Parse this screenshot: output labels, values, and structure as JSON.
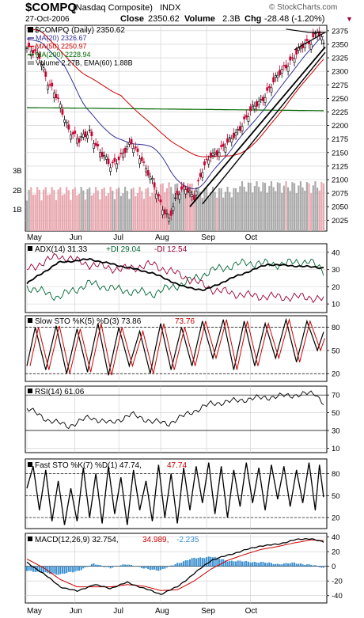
{
  "header": {
    "symbol": "$COMPQ",
    "symbol_desc": "(Nasdaq Composite)",
    "exchange": "INDX",
    "watermark": "© StockCharts.com",
    "date": "27-Oct-2006",
    "close_label": "Close",
    "close": "2350.62",
    "volume_label": "Volume",
    "volume": "2.3B",
    "chg_label": "Chg",
    "chg": "-28.48 (-1.20%)",
    "chg_arrow": "▼"
  },
  "colors": {
    "up_candle": "#000000",
    "down_candle": "#cc0033",
    "ma20": "#333399",
    "ma50": "#cc0000",
    "ma200": "#006600",
    "volume_bar": "#aaaaaa",
    "volume_down": "#e8a8b0",
    "macd_hist": "#3a8fd0",
    "adx_plus": "#006633",
    "adx_minus": "#990033"
  },
  "chart_data": [
    {
      "type": "line",
      "panel": "price",
      "title": "$COMPQ (Daily) 2350.62",
      "legend": [
        "MA(20) 2326.67",
        "MA(50) 2250.97",
        "MA(200) 2228.94",
        "Volume 2.27B, EMA(60) 1.88B"
      ],
      "months": [
        "May",
        "Jun",
        "Jul",
        "Aug",
        "Sep",
        "Oct"
      ],
      "ylim": [
        2005,
        2385
      ],
      "yticks": [
        2025,
        2050,
        2075,
        2100,
        2125,
        2150,
        2175,
        2200,
        2225,
        2250,
        2275,
        2300,
        2325,
        2350,
        2375
      ],
      "volume_ticks": [
        "1B",
        "2B",
        "3B"
      ],
      "close_series_key": [
        {
          "day": 0,
          "close": 2340
        },
        {
          "day": 6,
          "close": 2330
        },
        {
          "day": 10,
          "close": 2280
        },
        {
          "day": 15,
          "close": 2245
        },
        {
          "day": 20,
          "close": 2195
        },
        {
          "day": 25,
          "close": 2170
        },
        {
          "day": 30,
          "close": 2190
        },
        {
          "day": 35,
          "close": 2150
        },
        {
          "day": 40,
          "close": 2125
        },
        {
          "day": 45,
          "close": 2145
        },
        {
          "day": 50,
          "close": 2165
        },
        {
          "day": 55,
          "close": 2140
        },
        {
          "day": 60,
          "close": 2095
        },
        {
          "day": 64,
          "close": 2055
        },
        {
          "day": 68,
          "close": 2030
        },
        {
          "day": 72,
          "close": 2070
        },
        {
          "day": 76,
          "close": 2085
        },
        {
          "day": 80,
          "close": 2070
        },
        {
          "day": 84,
          "close": 2115
        },
        {
          "day": 88,
          "close": 2145
        },
        {
          "day": 92,
          "close": 2155
        },
        {
          "day": 96,
          "close": 2165
        },
        {
          "day": 100,
          "close": 2185
        },
        {
          "day": 104,
          "close": 2210
        },
        {
          "day": 108,
          "close": 2230
        },
        {
          "day": 112,
          "close": 2245
        },
        {
          "day": 116,
          "close": 2270
        },
        {
          "day": 120,
          "close": 2290
        },
        {
          "day": 124,
          "close": 2310
        },
        {
          "day": 128,
          "close": 2330
        },
        {
          "day": 132,
          "close": 2345
        },
        {
          "day": 136,
          "close": 2355
        },
        {
          "day": 139,
          "close": 2378
        },
        {
          "day": 142,
          "close": 2350
        }
      ]
    },
    {
      "type": "line",
      "panel": "adx",
      "title_parts": {
        "adx": "ADX(14) 31.33",
        "plus": "+DI 29.04",
        "minus": "-DI 12.54"
      },
      "ylim": [
        5,
        45
      ],
      "yticks": [
        10,
        20,
        30,
        40
      ],
      "adx_key": [
        {
          "day": 0,
          "value": 22
        },
        {
          "day": 15,
          "value": 34
        },
        {
          "day": 30,
          "value": 36
        },
        {
          "day": 45,
          "value": 32
        },
        {
          "day": 60,
          "value": 28
        },
        {
          "day": 75,
          "value": 20
        },
        {
          "day": 85,
          "value": 18
        },
        {
          "day": 100,
          "value": 26
        },
        {
          "day": 115,
          "value": 33
        },
        {
          "day": 130,
          "value": 32
        },
        {
          "day": 142,
          "value": 31
        }
      ],
      "plus_di_key": [
        {
          "day": 0,
          "value": 20
        },
        {
          "day": 15,
          "value": 14
        },
        {
          "day": 30,
          "value": 22
        },
        {
          "day": 45,
          "value": 18
        },
        {
          "day": 60,
          "value": 16
        },
        {
          "day": 75,
          "value": 22
        },
        {
          "day": 90,
          "value": 30
        },
        {
          "day": 105,
          "value": 34
        },
        {
          "day": 120,
          "value": 33
        },
        {
          "day": 135,
          "value": 35
        },
        {
          "day": 142,
          "value": 29
        }
      ],
      "minus_di_key": [
        {
          "day": 0,
          "value": 30
        },
        {
          "day": 15,
          "value": 38
        },
        {
          "day": 30,
          "value": 33
        },
        {
          "day": 45,
          "value": 30
        },
        {
          "day": 60,
          "value": 33
        },
        {
          "day": 75,
          "value": 26
        },
        {
          "day": 90,
          "value": 18
        },
        {
          "day": 105,
          "value": 15
        },
        {
          "day": 120,
          "value": 14
        },
        {
          "day": 135,
          "value": 14
        },
        {
          "day": 142,
          "value": 12.5
        }
      ]
    },
    {
      "type": "line",
      "panel": "slow_sto",
      "title_parts": {
        "label": "Slow STO %K(5) %D(3)",
        "k": "73.86",
        "d": "73.76"
      },
      "ylim": [
        10,
        95
      ],
      "yticks": [
        20,
        50,
        80
      ],
      "k_key": [
        {
          "day": 0,
          "value": 30
        },
        {
          "day": 4,
          "value": 80
        },
        {
          "day": 9,
          "value": 25
        },
        {
          "day": 14,
          "value": 82
        },
        {
          "day": 19,
          "value": 20
        },
        {
          "day": 24,
          "value": 78
        },
        {
          "day": 29,
          "value": 22
        },
        {
          "day": 34,
          "value": 85
        },
        {
          "day": 39,
          "value": 18
        },
        {
          "day": 44,
          "value": 80
        },
        {
          "day": 49,
          "value": 30
        },
        {
          "day": 54,
          "value": 75
        },
        {
          "day": 59,
          "value": 20
        },
        {
          "day": 64,
          "value": 85
        },
        {
          "day": 69,
          "value": 25
        },
        {
          "day": 74,
          "value": 80
        },
        {
          "day": 79,
          "value": 30
        },
        {
          "day": 84,
          "value": 88
        },
        {
          "day": 89,
          "value": 40
        },
        {
          "day": 94,
          "value": 90
        },
        {
          "day": 99,
          "value": 25
        },
        {
          "day": 104,
          "value": 88
        },
        {
          "day": 109,
          "value": 30
        },
        {
          "day": 114,
          "value": 85
        },
        {
          "day": 119,
          "value": 40
        },
        {
          "day": 124,
          "value": 90
        },
        {
          "day": 129,
          "value": 35
        },
        {
          "day": 134,
          "value": 88
        },
        {
          "day": 139,
          "value": 50
        },
        {
          "day": 142,
          "value": 74
        }
      ]
    },
    {
      "type": "line",
      "panel": "rsi",
      "title": "RSI(14) 61.06",
      "ylim": [
        5,
        80
      ],
      "yticks": [
        10,
        30,
        50,
        70
      ],
      "rsi_key": [
        {
          "day": 0,
          "value": 55
        },
        {
          "day": 10,
          "value": 42
        },
        {
          "day": 20,
          "value": 35
        },
        {
          "day": 30,
          "value": 45
        },
        {
          "day": 40,
          "value": 38
        },
        {
          "day": 50,
          "value": 48
        },
        {
          "day": 60,
          "value": 40
        },
        {
          "day": 68,
          "value": 38
        },
        {
          "day": 78,
          "value": 50
        },
        {
          "day": 88,
          "value": 60
        },
        {
          "day": 98,
          "value": 63
        },
        {
          "day": 108,
          "value": 66
        },
        {
          "day": 118,
          "value": 68
        },
        {
          "day": 128,
          "value": 70
        },
        {
          "day": 138,
          "value": 72
        },
        {
          "day": 142,
          "value": 61
        }
      ]
    },
    {
      "type": "line",
      "panel": "fast_sto",
      "title_parts": {
        "label": "Fast STO %K(7) %D(1)",
        "k": "47.74",
        "d": "47.74"
      },
      "ylim": [
        5,
        100
      ],
      "yticks": [
        20,
        50,
        80
      ],
      "k_key": [
        {
          "day": 0,
          "value": 60
        },
        {
          "day": 3,
          "value": 90
        },
        {
          "day": 6,
          "value": 30
        },
        {
          "day": 9,
          "value": 85
        },
        {
          "day": 12,
          "value": 15
        },
        {
          "day": 15,
          "value": 70
        },
        {
          "day": 18,
          "value": 10
        },
        {
          "day": 21,
          "value": 60
        },
        {
          "day": 24,
          "value": 15
        },
        {
          "day": 27,
          "value": 88
        },
        {
          "day": 30,
          "value": 20
        },
        {
          "day": 33,
          "value": 80
        },
        {
          "day": 36,
          "value": 12
        },
        {
          "day": 39,
          "value": 90
        },
        {
          "day": 42,
          "value": 25
        },
        {
          "day": 45,
          "value": 75
        },
        {
          "day": 48,
          "value": 10
        },
        {
          "day": 51,
          "value": 85
        },
        {
          "day": 54,
          "value": 30
        },
        {
          "day": 57,
          "value": 70
        },
        {
          "day": 60,
          "value": 15
        },
        {
          "day": 63,
          "value": 92
        },
        {
          "day": 66,
          "value": 20
        },
        {
          "day": 69,
          "value": 80
        },
        {
          "day": 72,
          "value": 12
        },
        {
          "day": 75,
          "value": 88
        },
        {
          "day": 78,
          "value": 30
        },
        {
          "day": 81,
          "value": 90
        },
        {
          "day": 84,
          "value": 40
        },
        {
          "day": 87,
          "value": 95
        },
        {
          "day": 90,
          "value": 25
        },
        {
          "day": 93,
          "value": 90
        },
        {
          "day": 96,
          "value": 20
        },
        {
          "day": 99,
          "value": 85
        },
        {
          "day": 102,
          "value": 35
        },
        {
          "day": 105,
          "value": 95
        },
        {
          "day": 108,
          "value": 40
        },
        {
          "day": 111,
          "value": 88
        },
        {
          "day": 114,
          "value": 30
        },
        {
          "day": 117,
          "value": 92
        },
        {
          "day": 120,
          "value": 45
        },
        {
          "day": 123,
          "value": 90
        },
        {
          "day": 126,
          "value": 35
        },
        {
          "day": 129,
          "value": 85
        },
        {
          "day": 132,
          "value": 40
        },
        {
          "day": 135,
          "value": 95
        },
        {
          "day": 138,
          "value": 30
        },
        {
          "day": 140,
          "value": 92
        },
        {
          "day": 142,
          "value": 48
        }
      ]
    },
    {
      "type": "line",
      "panel": "macd",
      "title_parts": {
        "label": "MACD(12,26,9)",
        "macd": "32.754",
        "signal": "34.989",
        "hist": "-2.235"
      },
      "ylim": [
        -50,
        45
      ],
      "yticks": [
        -40,
        -20,
        0,
        20,
        40
      ],
      "macd_key": [
        {
          "day": 0,
          "value": 5
        },
        {
          "day": 8,
          "value": -10
        },
        {
          "day": 16,
          "value": -28
        },
        {
          "day": 24,
          "value": -34
        },
        {
          "day": 32,
          "value": -25
        },
        {
          "day": 40,
          "value": -30
        },
        {
          "day": 48,
          "value": -22
        },
        {
          "day": 56,
          "value": -30
        },
        {
          "day": 64,
          "value": -38
        },
        {
          "day": 72,
          "value": -28
        },
        {
          "day": 80,
          "value": -10
        },
        {
          "day": 88,
          "value": 8
        },
        {
          "day": 96,
          "value": 15
        },
        {
          "day": 104,
          "value": 22
        },
        {
          "day": 112,
          "value": 28
        },
        {
          "day": 120,
          "value": 30
        },
        {
          "day": 128,
          "value": 36
        },
        {
          "day": 136,
          "value": 38
        },
        {
          "day": 142,
          "value": 32.754
        }
      ],
      "signal_key": [
        {
          "day": 0,
          "value": 10
        },
        {
          "day": 8,
          "value": -2
        },
        {
          "day": 16,
          "value": -18
        },
        {
          "day": 24,
          "value": -28
        },
        {
          "day": 32,
          "value": -28
        },
        {
          "day": 40,
          "value": -28
        },
        {
          "day": 48,
          "value": -25
        },
        {
          "day": 56,
          "value": -27
        },
        {
          "day": 64,
          "value": -33
        },
        {
          "day": 72,
          "value": -32
        },
        {
          "day": 80,
          "value": -20
        },
        {
          "day": 88,
          "value": -4
        },
        {
          "day": 96,
          "value": 8
        },
        {
          "day": 104,
          "value": 16
        },
        {
          "day": 112,
          "value": 23
        },
        {
          "day": 120,
          "value": 27
        },
        {
          "day": 128,
          "value": 32
        },
        {
          "day": 136,
          "value": 36
        },
        {
          "day": 142,
          "value": 34.989
        }
      ]
    }
  ]
}
